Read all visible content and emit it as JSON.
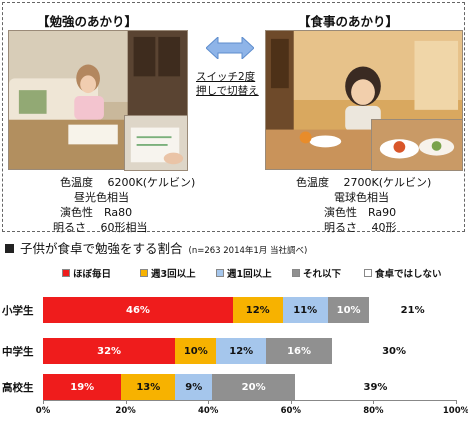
{
  "study_light": {
    "title": "【勉強のあかり】",
    "specs": [
      "色温度　 6200K(ケルビン)",
      "昼光色相当",
      "演色性　Ra80",
      "明るさ　 60形相当"
    ]
  },
  "meal_light": {
    "title": "【食事のあかり】",
    "specs": [
      "色温度　 2700K(ケルビン)",
      "電球色相当",
      "演色性　Ra90",
      "明るさ　 40形"
    ]
  },
  "switch_text": [
    "スイッチ2度",
    "押しで切替え"
  ],
  "colors": {
    "red": "#ef1c1c",
    "orange": "#f7b200",
    "blue": "#a5c6ec",
    "gray": "#909090",
    "white": "#ffffff",
    "arrow": "#8eb4e8"
  },
  "chart_data": {
    "type": "bar",
    "orientation": "horizontal-stacked",
    "title": "子供が食卓で勉強をする割合",
    "note": "(n=263 2014年1月 当社調べ)",
    "categories": [
      "小学生",
      "中学生",
      "高校生"
    ],
    "series": [
      {
        "name": "ほぼ毎日",
        "color": "#ef1c1c",
        "values": [
          46,
          32,
          19
        ],
        "labels": [
          "46%",
          "32%",
          "19%"
        ]
      },
      {
        "name": "週3回以上",
        "color": "#f7b200",
        "values": [
          12,
          10,
          13
        ],
        "labels": [
          "12%",
          "10%",
          "13%"
        ]
      },
      {
        "name": "週1回以上",
        "color": "#a5c6ec",
        "values": [
          11,
          12,
          9
        ],
        "labels": [
          "11%",
          "12%",
          "9%"
        ]
      },
      {
        "name": "それ以下",
        "color": "#909090",
        "values": [
          10,
          16,
          20
        ],
        "labels": [
          "10%",
          "16%",
          "20%"
        ]
      },
      {
        "name": "食卓ではしない",
        "color": "#ffffff",
        "values": [
          21,
          30,
          39
        ],
        "labels": [
          "21%",
          "30%",
          "39%"
        ]
      }
    ],
    "x_ticks": [
      "0%",
      "20%",
      "40%",
      "60%",
      "80%",
      "100%"
    ],
    "xlim": [
      0,
      100
    ],
    "legend": "top",
    "grid": false
  }
}
